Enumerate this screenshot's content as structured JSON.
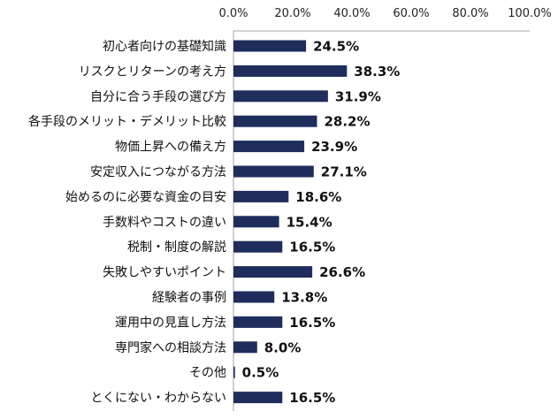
{
  "chart_data": {
    "type": "bar",
    "orientation": "horizontal",
    "title": "",
    "xlabel": "",
    "ylabel": "",
    "xlim": [
      0,
      100
    ],
    "ticks": [
      "0.0%",
      "20.0%",
      "40.0%",
      "60.0%",
      "80.0%",
      "100.0%"
    ],
    "tick_values": [
      0,
      20,
      40,
      60,
      80,
      100
    ],
    "categories": [
      "初心者向けの基礎知識",
      "リスクとリターンの考え方",
      "自分に合う手段の選び方",
      "各手段のメリット・デメリット比較",
      "物価上昇への備え方",
      "安定収入につながる方法",
      "始めるのに必要な資金の目安",
      "手数料やコストの違い",
      "税制・制度の解説",
      "失敗しやすいポイント",
      "経験者の事例",
      "運用中の見直し方法",
      "専門家への相談方法",
      "その他",
      "とくにない・わからない"
    ],
    "values": [
      24.5,
      38.3,
      31.9,
      28.2,
      23.9,
      27.1,
      18.6,
      15.4,
      16.5,
      26.6,
      13.8,
      16.5,
      8.0,
      0.5,
      16.5
    ],
    "value_labels": [
      "24.5%",
      "38.3%",
      "31.9%",
      "28.2%",
      "23.9%",
      "27.1%",
      "18.6%",
      "15.4%",
      "16.5%",
      "26.6%",
      "13.8%",
      "16.5%",
      "8.0%",
      "0.5%",
      "16.5%"
    ],
    "bar_color": "#1F2D5C",
    "axis_color": "#A6A6A6",
    "grid": false,
    "legend": "none"
  }
}
